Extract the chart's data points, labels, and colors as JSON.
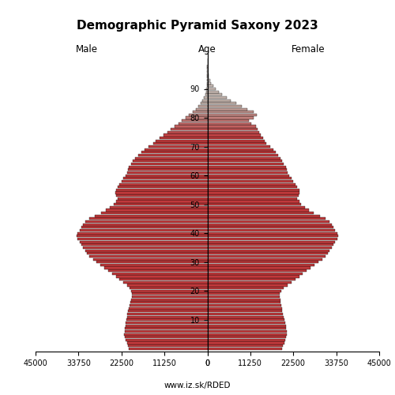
{
  "title": "Demographic Pyramid Saxony 2023",
  "xlabel_left": "Male",
  "xlabel_right": "Female",
  "xlabel_center": "Age",
  "footer": "www.iz.sk/RDED",
  "xlim": 45000,
  "color_young": "#c0393b",
  "color_mid": "#c87878",
  "color_old": "#c0b0a8",
  "color_vold": "#b0a098",
  "color_edge": "#000000",
  "ages": [
    0,
    1,
    2,
    3,
    4,
    5,
    6,
    7,
    8,
    9,
    10,
    11,
    12,
    13,
    14,
    15,
    16,
    17,
    18,
    19,
    20,
    21,
    22,
    23,
    24,
    25,
    26,
    27,
    28,
    29,
    30,
    31,
    32,
    33,
    34,
    35,
    36,
    37,
    38,
    39,
    40,
    41,
    42,
    43,
    44,
    45,
    46,
    47,
    48,
    49,
    50,
    51,
    52,
    53,
    54,
    55,
    56,
    57,
    58,
    59,
    60,
    61,
    62,
    63,
    64,
    65,
    66,
    67,
    68,
    69,
    70,
    71,
    72,
    73,
    74,
    75,
    76,
    77,
    78,
    79,
    80,
    81,
    82,
    83,
    84,
    85,
    86,
    87,
    88,
    89,
    90,
    91,
    92,
    93,
    94,
    95,
    96,
    97,
    98,
    99,
    100
  ],
  "male": [
    20500,
    20800,
    21100,
    21400,
    21600,
    21800,
    21700,
    21600,
    21500,
    21400,
    21200,
    21000,
    20900,
    20700,
    20600,
    20400,
    20200,
    20000,
    19800,
    19700,
    19900,
    20300,
    21000,
    22000,
    23000,
    24000,
    25000,
    26000,
    27000,
    28000,
    29000,
    30000,
    31000,
    31500,
    32000,
    32500,
    33000,
    33500,
    34000,
    34200,
    34000,
    33500,
    33000,
    32500,
    32000,
    31000,
    29500,
    27800,
    26500,
    25500,
    24500,
    24000,
    23500,
    23800,
    24200,
    24000,
    23500,
    23000,
    22500,
    22000,
    21500,
    21000,
    20800,
    20500,
    20000,
    19500,
    19000,
    18200,
    17200,
    16500,
    15500,
    14200,
    13500,
    12500,
    11500,
    10500,
    9600,
    8600,
    7600,
    6700,
    5700,
    4800,
    3900,
    3100,
    2400,
    1800,
    1300,
    900,
    600,
    380,
    230,
    130,
    70,
    35,
    18,
    9,
    4,
    2,
    1,
    0,
    0
  ],
  "female": [
    19500,
    19800,
    20100,
    20400,
    20600,
    20800,
    20700,
    20600,
    20500,
    20300,
    20100,
    19900,
    19800,
    19600,
    19500,
    19300,
    19200,
    19100,
    19000,
    19000,
    19400,
    20000,
    21000,
    22000,
    23000,
    24000,
    25000,
    26000,
    27000,
    28000,
    29000,
    30000,
    31000,
    31500,
    32000,
    32500,
    33000,
    33500,
    34000,
    34200,
    34000,
    33500,
    33000,
    32500,
    32000,
    31000,
    29500,
    27800,
    26500,
    25500,
    24500,
    24000,
    23500,
    23800,
    24200,
    24000,
    23500,
    23000,
    22500,
    22000,
    21500,
    21000,
    20800,
    20500,
    20000,
    19500,
    19200,
    18600,
    17800,
    17200,
    16500,
    15500,
    15000,
    14500,
    14000,
    13500,
    13200,
    12800,
    11500,
    10800,
    12000,
    13000,
    12000,
    10500,
    9000,
    7500,
    6200,
    5000,
    3900,
    3000,
    2100,
    1500,
    1000,
    650,
    400,
    240,
    140,
    75,
    38,
    18,
    8
  ],
  "color_thresholds": [
    75,
    85
  ],
  "bar_height": 0.85
}
